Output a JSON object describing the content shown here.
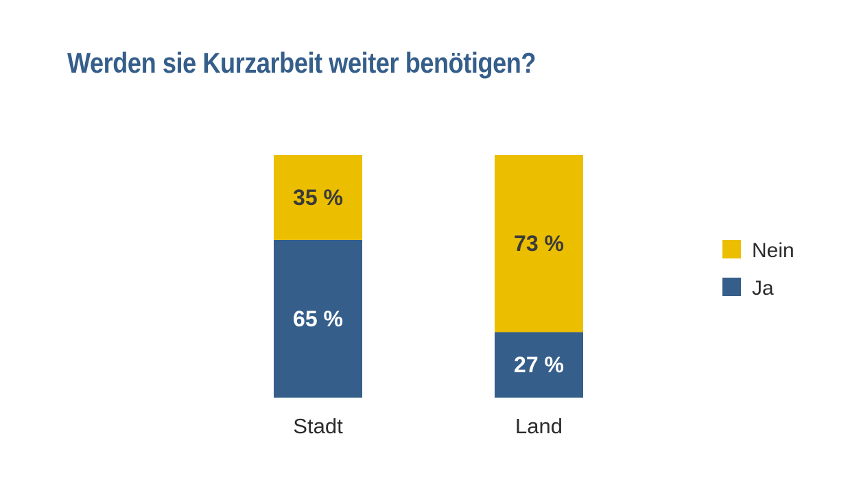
{
  "colors": {
    "title": "#355e8a",
    "ja": "#355e8a",
    "nein": "#ecbe00",
    "label_on_ja": "#ffffff",
    "label_on_nein": "#3a3a3a"
  },
  "chart_data": {
    "type": "bar",
    "stacked": true,
    "title": "Werden sie Kurzarbeit weiter benötigen?",
    "xlabel": "",
    "ylabel": "",
    "ylim": [
      0,
      100
    ],
    "grid": false,
    "legend_position": "right",
    "categories": [
      "Stadt",
      "Land"
    ],
    "series": [
      {
        "name": "Ja",
        "values": [
          65,
          27
        ],
        "labels": [
          "65 %",
          "27 %"
        ]
      },
      {
        "name": "Nein",
        "values": [
          35,
          73
        ],
        "labels": [
          "35 %",
          "73 %"
        ]
      }
    ],
    "legend": [
      "Nein",
      "Ja"
    ]
  }
}
